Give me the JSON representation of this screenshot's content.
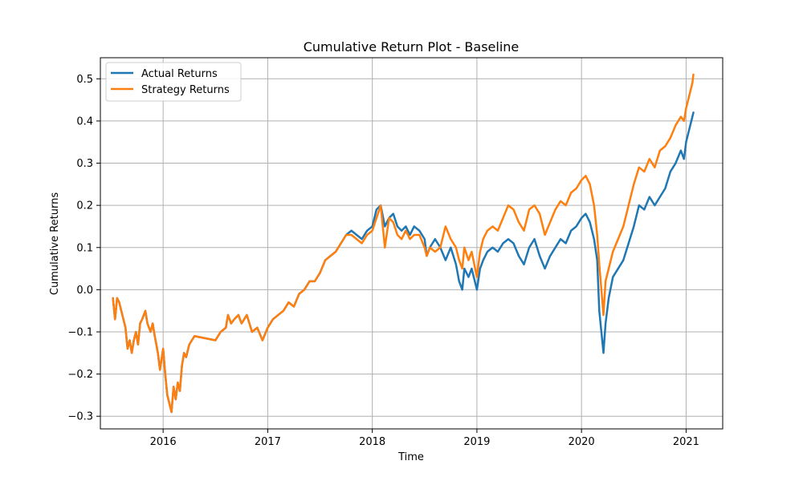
{
  "chart_data": {
    "type": "line",
    "title": "Cumulative Return Plot - Baseline",
    "xlabel": "Time",
    "ylabel": "Cumulative Returns",
    "grid": true,
    "legend_position": "upper-left",
    "xlim": [
      2015.4,
      2021.35
    ],
    "ylim": [
      -0.33,
      0.55
    ],
    "x_ticks": [
      2016,
      2017,
      2018,
      2019,
      2020,
      2021
    ],
    "x_tick_labels": [
      "2016",
      "2017",
      "2018",
      "2019",
      "2020",
      "2021"
    ],
    "y_ticks": [
      -0.3,
      -0.2,
      -0.1,
      0.0,
      0.1,
      0.2,
      0.3,
      0.4,
      0.5
    ],
    "y_tick_labels": [
      "−0.3",
      "−0.2",
      "−0.1",
      "0.0",
      "0.1",
      "0.2",
      "0.3",
      "0.4",
      "0.5"
    ],
    "series": [
      {
        "name": "Actual Returns",
        "color": "#1f77b4",
        "points": [
          [
            2015.52,
            -0.02
          ],
          [
            2015.54,
            -0.07
          ],
          [
            2015.56,
            -0.02
          ],
          [
            2015.58,
            -0.03
          ],
          [
            2015.6,
            -0.05
          ],
          [
            2015.62,
            -0.07
          ],
          [
            2015.64,
            -0.09
          ],
          [
            2015.66,
            -0.14
          ],
          [
            2015.68,
            -0.12
          ],
          [
            2015.7,
            -0.15
          ],
          [
            2015.72,
            -0.12
          ],
          [
            2015.74,
            -0.1
          ],
          [
            2015.76,
            -0.13
          ],
          [
            2015.78,
            -0.08
          ],
          [
            2015.8,
            -0.07
          ],
          [
            2015.83,
            -0.05
          ],
          [
            2015.85,
            -0.08
          ],
          [
            2015.88,
            -0.1
          ],
          [
            2015.9,
            -0.08
          ],
          [
            2015.92,
            -0.11
          ],
          [
            2015.95,
            -0.15
          ],
          [
            2015.97,
            -0.19
          ],
          [
            2016.0,
            -0.14
          ],
          [
            2016.02,
            -0.2
          ],
          [
            2016.04,
            -0.25
          ],
          [
            2016.06,
            -0.27
          ],
          [
            2016.08,
            -0.29
          ],
          [
            2016.1,
            -0.23
          ],
          [
            2016.12,
            -0.26
          ],
          [
            2016.14,
            -0.22
          ],
          [
            2016.16,
            -0.24
          ],
          [
            2016.18,
            -0.18
          ],
          [
            2016.2,
            -0.15
          ],
          [
            2016.22,
            -0.16
          ],
          [
            2016.25,
            -0.13
          ],
          [
            2016.3,
            -0.11
          ],
          [
            2016.4,
            -0.115
          ],
          [
            2016.5,
            -0.12
          ],
          [
            2016.55,
            -0.1
          ],
          [
            2016.6,
            -0.09
          ],
          [
            2016.62,
            -0.06
          ],
          [
            2016.65,
            -0.08
          ],
          [
            2016.68,
            -0.07
          ],
          [
            2016.72,
            -0.06
          ],
          [
            2016.75,
            -0.08
          ],
          [
            2016.8,
            -0.06
          ],
          [
            2016.85,
            -0.1
          ],
          [
            2016.9,
            -0.09
          ],
          [
            2016.95,
            -0.12
          ],
          [
            2017.0,
            -0.09
          ],
          [
            2017.05,
            -0.07
          ],
          [
            2017.1,
            -0.06
          ],
          [
            2017.15,
            -0.05
          ],
          [
            2017.2,
            -0.03
          ],
          [
            2017.25,
            -0.04
          ],
          [
            2017.3,
            -0.01
          ],
          [
            2017.35,
            0.0
          ],
          [
            2017.4,
            0.02
          ],
          [
            2017.45,
            0.02
          ],
          [
            2017.5,
            0.04
          ],
          [
            2017.55,
            0.07
          ],
          [
            2017.6,
            0.08
          ],
          [
            2017.65,
            0.09
          ],
          [
            2017.7,
            0.11
          ],
          [
            2017.75,
            0.13
          ],
          [
            2017.8,
            0.14
          ],
          [
            2017.85,
            0.13
          ],
          [
            2017.9,
            0.12
          ],
          [
            2017.95,
            0.14
          ],
          [
            2018.0,
            0.15
          ],
          [
            2018.04,
            0.19
          ],
          [
            2018.08,
            0.2
          ],
          [
            2018.12,
            0.15
          ],
          [
            2018.16,
            0.17
          ],
          [
            2018.2,
            0.18
          ],
          [
            2018.24,
            0.15
          ],
          [
            2018.28,
            0.14
          ],
          [
            2018.32,
            0.15
          ],
          [
            2018.36,
            0.13
          ],
          [
            2018.4,
            0.15
          ],
          [
            2018.45,
            0.14
          ],
          [
            2018.5,
            0.12
          ],
          [
            2018.52,
            0.08
          ],
          [
            2018.55,
            0.1
          ],
          [
            2018.6,
            0.12
          ],
          [
            2018.65,
            0.1
          ],
          [
            2018.7,
            0.07
          ],
          [
            2018.75,
            0.1
          ],
          [
            2018.8,
            0.06
          ],
          [
            2018.83,
            0.02
          ],
          [
            2018.86,
            0.0
          ],
          [
            2018.88,
            0.05
          ],
          [
            2018.92,
            0.03
          ],
          [
            2018.95,
            0.05
          ],
          [
            2019.0,
            0.0
          ],
          [
            2019.03,
            0.05
          ],
          [
            2019.06,
            0.07
          ],
          [
            2019.1,
            0.09
          ],
          [
            2019.15,
            0.1
          ],
          [
            2019.2,
            0.09
          ],
          [
            2019.25,
            0.11
          ],
          [
            2019.3,
            0.12
          ],
          [
            2019.35,
            0.11
          ],
          [
            2019.4,
            0.08
          ],
          [
            2019.45,
            0.06
          ],
          [
            2019.5,
            0.1
          ],
          [
            2019.55,
            0.12
          ],
          [
            2019.6,
            0.08
          ],
          [
            2019.65,
            0.05
          ],
          [
            2019.7,
            0.08
          ],
          [
            2019.75,
            0.1
          ],
          [
            2019.8,
            0.12
          ],
          [
            2019.85,
            0.11
          ],
          [
            2019.9,
            0.14
          ],
          [
            2019.95,
            0.15
          ],
          [
            2020.0,
            0.17
          ],
          [
            2020.04,
            0.18
          ],
          [
            2020.08,
            0.16
          ],
          [
            2020.12,
            0.12
          ],
          [
            2020.15,
            0.07
          ],
          [
            2020.17,
            -0.05
          ],
          [
            2020.19,
            -0.1
          ],
          [
            2020.21,
            -0.15
          ],
          [
            2020.23,
            -0.08
          ],
          [
            2020.26,
            -0.02
          ],
          [
            2020.3,
            0.03
          ],
          [
            2020.35,
            0.05
          ],
          [
            2020.4,
            0.07
          ],
          [
            2020.45,
            0.11
          ],
          [
            2020.5,
            0.15
          ],
          [
            2020.55,
            0.2
          ],
          [
            2020.6,
            0.19
          ],
          [
            2020.65,
            0.22
          ],
          [
            2020.7,
            0.2
          ],
          [
            2020.75,
            0.22
          ],
          [
            2020.8,
            0.24
          ],
          [
            2020.85,
            0.28
          ],
          [
            2020.9,
            0.3
          ],
          [
            2020.95,
            0.33
          ],
          [
            2020.98,
            0.31
          ],
          [
            2021.0,
            0.35
          ],
          [
            2021.03,
            0.38
          ],
          [
            2021.06,
            0.41
          ],
          [
            2021.07,
            0.42
          ]
        ]
      },
      {
        "name": "Strategy Returns",
        "color": "#ff7f0e",
        "points": [
          [
            2015.52,
            -0.02
          ],
          [
            2015.54,
            -0.07
          ],
          [
            2015.56,
            -0.02
          ],
          [
            2015.58,
            -0.03
          ],
          [
            2015.6,
            -0.05
          ],
          [
            2015.62,
            -0.07
          ],
          [
            2015.64,
            -0.09
          ],
          [
            2015.66,
            -0.14
          ],
          [
            2015.68,
            -0.12
          ],
          [
            2015.7,
            -0.15
          ],
          [
            2015.72,
            -0.12
          ],
          [
            2015.74,
            -0.1
          ],
          [
            2015.76,
            -0.13
          ],
          [
            2015.78,
            -0.08
          ],
          [
            2015.8,
            -0.07
          ],
          [
            2015.83,
            -0.05
          ],
          [
            2015.85,
            -0.08
          ],
          [
            2015.88,
            -0.1
          ],
          [
            2015.9,
            -0.08
          ],
          [
            2015.92,
            -0.11
          ],
          [
            2015.95,
            -0.15
          ],
          [
            2015.97,
            -0.19
          ],
          [
            2016.0,
            -0.14
          ],
          [
            2016.02,
            -0.2
          ],
          [
            2016.04,
            -0.25
          ],
          [
            2016.06,
            -0.27
          ],
          [
            2016.08,
            -0.29
          ],
          [
            2016.1,
            -0.23
          ],
          [
            2016.12,
            -0.26
          ],
          [
            2016.14,
            -0.22
          ],
          [
            2016.16,
            -0.24
          ],
          [
            2016.18,
            -0.18
          ],
          [
            2016.2,
            -0.15
          ],
          [
            2016.22,
            -0.16
          ],
          [
            2016.25,
            -0.13
          ],
          [
            2016.3,
            -0.11
          ],
          [
            2016.4,
            -0.115
          ],
          [
            2016.5,
            -0.12
          ],
          [
            2016.55,
            -0.1
          ],
          [
            2016.6,
            -0.09
          ],
          [
            2016.62,
            -0.06
          ],
          [
            2016.65,
            -0.08
          ],
          [
            2016.68,
            -0.07
          ],
          [
            2016.72,
            -0.06
          ],
          [
            2016.75,
            -0.08
          ],
          [
            2016.8,
            -0.06
          ],
          [
            2016.85,
            -0.1
          ],
          [
            2016.9,
            -0.09
          ],
          [
            2016.95,
            -0.12
          ],
          [
            2017.0,
            -0.09
          ],
          [
            2017.05,
            -0.07
          ],
          [
            2017.1,
            -0.06
          ],
          [
            2017.15,
            -0.05
          ],
          [
            2017.2,
            -0.03
          ],
          [
            2017.25,
            -0.04
          ],
          [
            2017.3,
            -0.01
          ],
          [
            2017.35,
            0.0
          ],
          [
            2017.4,
            0.02
          ],
          [
            2017.45,
            0.02
          ],
          [
            2017.5,
            0.04
          ],
          [
            2017.55,
            0.07
          ],
          [
            2017.6,
            0.08
          ],
          [
            2017.65,
            0.09
          ],
          [
            2017.7,
            0.11
          ],
          [
            2017.75,
            0.13
          ],
          [
            2017.8,
            0.13
          ],
          [
            2017.85,
            0.12
          ],
          [
            2017.9,
            0.11
          ],
          [
            2017.95,
            0.13
          ],
          [
            2018.0,
            0.14
          ],
          [
            2018.04,
            0.17
          ],
          [
            2018.08,
            0.2
          ],
          [
            2018.12,
            0.1
          ],
          [
            2018.16,
            0.17
          ],
          [
            2018.2,
            0.16
          ],
          [
            2018.24,
            0.13
          ],
          [
            2018.28,
            0.12
          ],
          [
            2018.32,
            0.14
          ],
          [
            2018.36,
            0.12
          ],
          [
            2018.4,
            0.13
          ],
          [
            2018.45,
            0.13
          ],
          [
            2018.5,
            0.1
          ],
          [
            2018.52,
            0.08
          ],
          [
            2018.55,
            0.1
          ],
          [
            2018.6,
            0.09
          ],
          [
            2018.65,
            0.1
          ],
          [
            2018.7,
            0.15
          ],
          [
            2018.75,
            0.12
          ],
          [
            2018.8,
            0.1
          ],
          [
            2018.83,
            0.07
          ],
          [
            2018.86,
            0.05
          ],
          [
            2018.88,
            0.1
          ],
          [
            2018.92,
            0.07
          ],
          [
            2018.95,
            0.09
          ],
          [
            2019.0,
            0.03
          ],
          [
            2019.03,
            0.09
          ],
          [
            2019.06,
            0.12
          ],
          [
            2019.1,
            0.14
          ],
          [
            2019.15,
            0.15
          ],
          [
            2019.2,
            0.14
          ],
          [
            2019.25,
            0.17
          ],
          [
            2019.3,
            0.2
          ],
          [
            2019.35,
            0.19
          ],
          [
            2019.4,
            0.16
          ],
          [
            2019.45,
            0.14
          ],
          [
            2019.5,
            0.19
          ],
          [
            2019.55,
            0.2
          ],
          [
            2019.6,
            0.18
          ],
          [
            2019.65,
            0.13
          ],
          [
            2019.7,
            0.16
          ],
          [
            2019.75,
            0.19
          ],
          [
            2019.8,
            0.21
          ],
          [
            2019.85,
            0.2
          ],
          [
            2019.9,
            0.23
          ],
          [
            2019.95,
            0.24
          ],
          [
            2020.0,
            0.26
          ],
          [
            2020.04,
            0.27
          ],
          [
            2020.08,
            0.25
          ],
          [
            2020.12,
            0.2
          ],
          [
            2020.15,
            0.13
          ],
          [
            2020.17,
            0.06
          ],
          [
            2020.19,
            0.0
          ],
          [
            2020.21,
            -0.06
          ],
          [
            2020.23,
            0.02
          ],
          [
            2020.26,
            0.05
          ],
          [
            2020.3,
            0.09
          ],
          [
            2020.35,
            0.12
          ],
          [
            2020.4,
            0.15
          ],
          [
            2020.45,
            0.2
          ],
          [
            2020.5,
            0.25
          ],
          [
            2020.55,
            0.29
          ],
          [
            2020.6,
            0.28
          ],
          [
            2020.65,
            0.31
          ],
          [
            2020.7,
            0.29
          ],
          [
            2020.75,
            0.33
          ],
          [
            2020.8,
            0.34
          ],
          [
            2020.85,
            0.36
          ],
          [
            2020.9,
            0.39
          ],
          [
            2020.95,
            0.41
          ],
          [
            2020.98,
            0.4
          ],
          [
            2021.0,
            0.43
          ],
          [
            2021.03,
            0.46
          ],
          [
            2021.06,
            0.49
          ],
          [
            2021.07,
            0.51
          ]
        ]
      }
    ]
  }
}
